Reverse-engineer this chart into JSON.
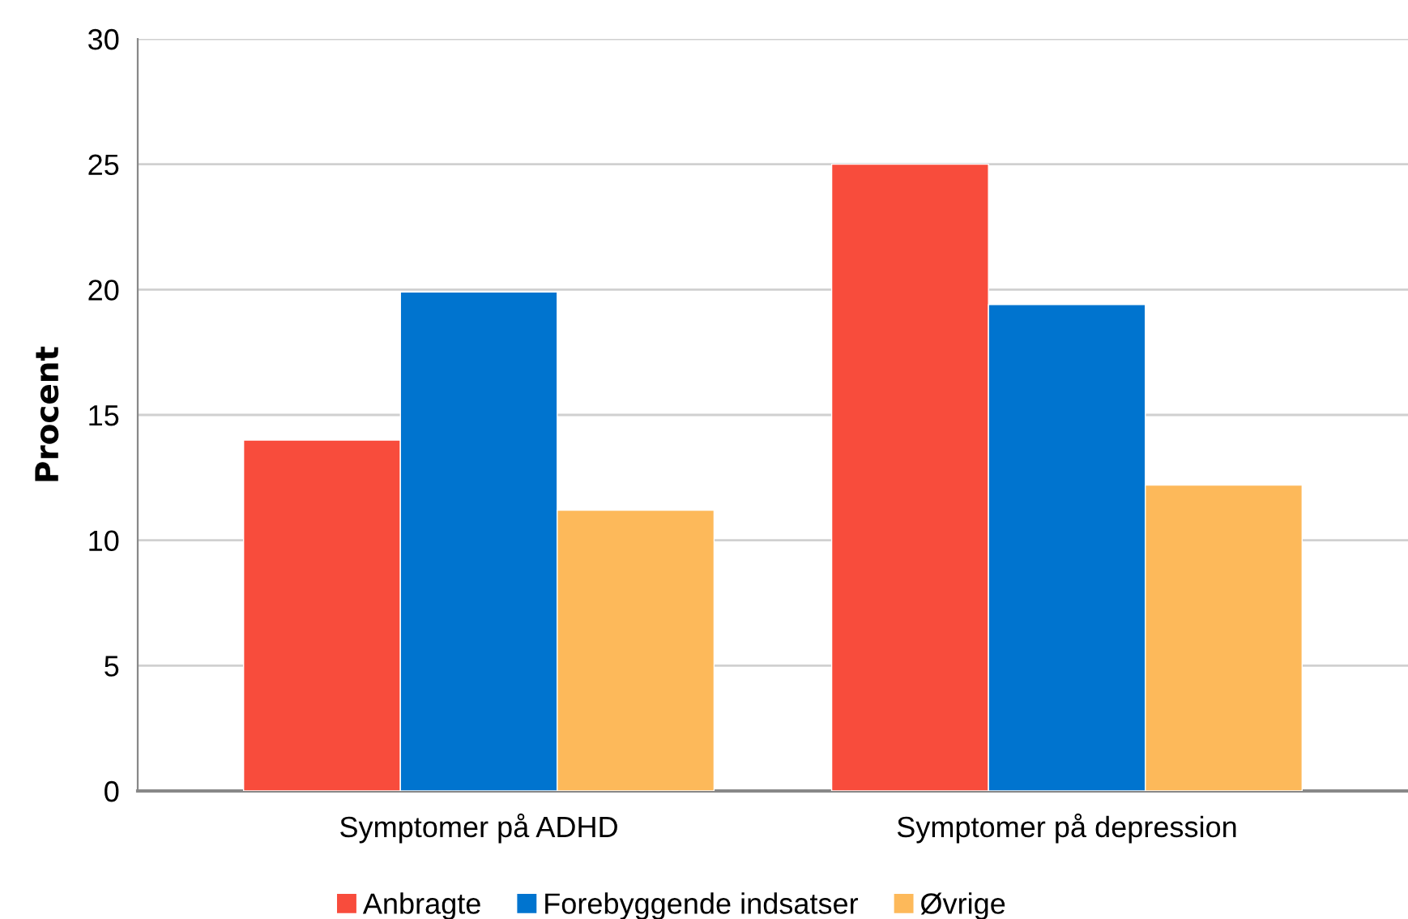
{
  "chart_data": {
    "type": "bar",
    "ylabel": "Procent",
    "categories": [
      "Symptomer på ADHD",
      "Symptomer på depression"
    ],
    "series": [
      {
        "name": "Anbragte",
        "color": "#f84c3c",
        "values": [
          14.0,
          25.0
        ]
      },
      {
        "name": "Forebyggende indsatser",
        "color": "#0074cf",
        "values": [
          19.9,
          19.4
        ]
      },
      {
        "name": "Øvrige",
        "color": "#fdb95a",
        "values": [
          11.2,
          12.2
        ]
      }
    ],
    "ylim": [
      0,
      30
    ],
    "yticks": [
      0,
      5,
      10,
      15,
      20,
      25,
      30
    ],
    "grid": "y",
    "legend": "bottom"
  }
}
